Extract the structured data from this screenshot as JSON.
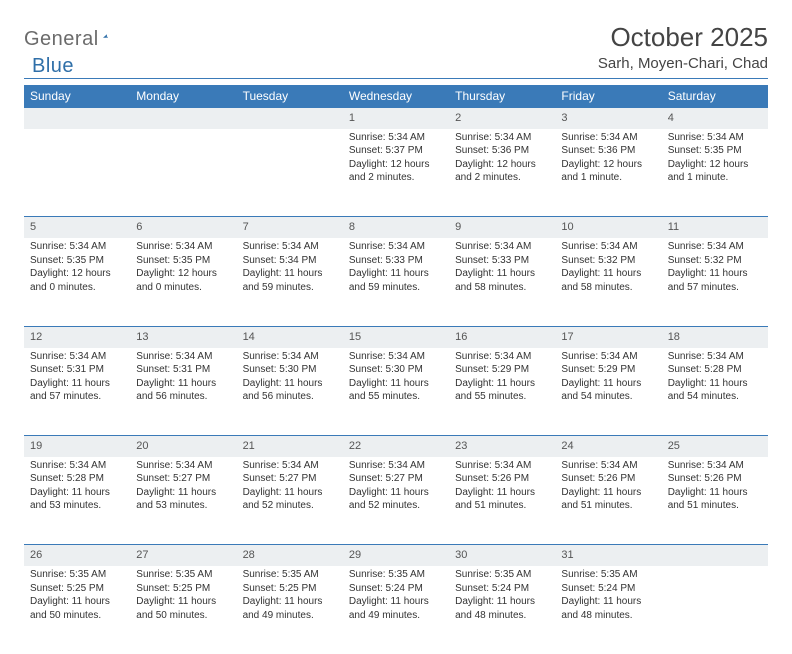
{
  "brand": {
    "part1": "General",
    "part2": "Blue"
  },
  "title": "October 2025",
  "location": "Sarh, Moyen-Chari, Chad",
  "header_bg": "#3a7ab8",
  "header_fg": "#ffffff",
  "daynum_bg": "#eceff1",
  "page_bg": "#ffffff",
  "text_color": "#333333",
  "day_headers": [
    "Sunday",
    "Monday",
    "Tuesday",
    "Wednesday",
    "Thursday",
    "Friday",
    "Saturday"
  ],
  "weeks": [
    [
      null,
      null,
      null,
      {
        "n": "1",
        "sr": "5:34 AM",
        "ss": "5:37 PM",
        "dl1": "12 hours",
        "dl2": "and 2 minutes."
      },
      {
        "n": "2",
        "sr": "5:34 AM",
        "ss": "5:36 PM",
        "dl1": "12 hours",
        "dl2": "and 2 minutes."
      },
      {
        "n": "3",
        "sr": "5:34 AM",
        "ss": "5:36 PM",
        "dl1": "12 hours",
        "dl2": "and 1 minute."
      },
      {
        "n": "4",
        "sr": "5:34 AM",
        "ss": "5:35 PM",
        "dl1": "12 hours",
        "dl2": "and 1 minute."
      }
    ],
    [
      {
        "n": "5",
        "sr": "5:34 AM",
        "ss": "5:35 PM",
        "dl1": "12 hours",
        "dl2": "and 0 minutes."
      },
      {
        "n": "6",
        "sr": "5:34 AM",
        "ss": "5:35 PM",
        "dl1": "12 hours",
        "dl2": "and 0 minutes."
      },
      {
        "n": "7",
        "sr": "5:34 AM",
        "ss": "5:34 PM",
        "dl1": "11 hours",
        "dl2": "and 59 minutes."
      },
      {
        "n": "8",
        "sr": "5:34 AM",
        "ss": "5:33 PM",
        "dl1": "11 hours",
        "dl2": "and 59 minutes."
      },
      {
        "n": "9",
        "sr": "5:34 AM",
        "ss": "5:33 PM",
        "dl1": "11 hours",
        "dl2": "and 58 minutes."
      },
      {
        "n": "10",
        "sr": "5:34 AM",
        "ss": "5:32 PM",
        "dl1": "11 hours",
        "dl2": "and 58 minutes."
      },
      {
        "n": "11",
        "sr": "5:34 AM",
        "ss": "5:32 PM",
        "dl1": "11 hours",
        "dl2": "and 57 minutes."
      }
    ],
    [
      {
        "n": "12",
        "sr": "5:34 AM",
        "ss": "5:31 PM",
        "dl1": "11 hours",
        "dl2": "and 57 minutes."
      },
      {
        "n": "13",
        "sr": "5:34 AM",
        "ss": "5:31 PM",
        "dl1": "11 hours",
        "dl2": "and 56 minutes."
      },
      {
        "n": "14",
        "sr": "5:34 AM",
        "ss": "5:30 PM",
        "dl1": "11 hours",
        "dl2": "and 56 minutes."
      },
      {
        "n": "15",
        "sr": "5:34 AM",
        "ss": "5:30 PM",
        "dl1": "11 hours",
        "dl2": "and 55 minutes."
      },
      {
        "n": "16",
        "sr": "5:34 AM",
        "ss": "5:29 PM",
        "dl1": "11 hours",
        "dl2": "and 55 minutes."
      },
      {
        "n": "17",
        "sr": "5:34 AM",
        "ss": "5:29 PM",
        "dl1": "11 hours",
        "dl2": "and 54 minutes."
      },
      {
        "n": "18",
        "sr": "5:34 AM",
        "ss": "5:28 PM",
        "dl1": "11 hours",
        "dl2": "and 54 minutes."
      }
    ],
    [
      {
        "n": "19",
        "sr": "5:34 AM",
        "ss": "5:28 PM",
        "dl1": "11 hours",
        "dl2": "and 53 minutes."
      },
      {
        "n": "20",
        "sr": "5:34 AM",
        "ss": "5:27 PM",
        "dl1": "11 hours",
        "dl2": "and 53 minutes."
      },
      {
        "n": "21",
        "sr": "5:34 AM",
        "ss": "5:27 PM",
        "dl1": "11 hours",
        "dl2": "and 52 minutes."
      },
      {
        "n": "22",
        "sr": "5:34 AM",
        "ss": "5:27 PM",
        "dl1": "11 hours",
        "dl2": "and 52 minutes."
      },
      {
        "n": "23",
        "sr": "5:34 AM",
        "ss": "5:26 PM",
        "dl1": "11 hours",
        "dl2": "and 51 minutes."
      },
      {
        "n": "24",
        "sr": "5:34 AM",
        "ss": "5:26 PM",
        "dl1": "11 hours",
        "dl2": "and 51 minutes."
      },
      {
        "n": "25",
        "sr": "5:34 AM",
        "ss": "5:26 PM",
        "dl1": "11 hours",
        "dl2": "and 51 minutes."
      }
    ],
    [
      {
        "n": "26",
        "sr": "5:35 AM",
        "ss": "5:25 PM",
        "dl1": "11 hours",
        "dl2": "and 50 minutes."
      },
      {
        "n": "27",
        "sr": "5:35 AM",
        "ss": "5:25 PM",
        "dl1": "11 hours",
        "dl2": "and 50 minutes."
      },
      {
        "n": "28",
        "sr": "5:35 AM",
        "ss": "5:25 PM",
        "dl1": "11 hours",
        "dl2": "and 49 minutes."
      },
      {
        "n": "29",
        "sr": "5:35 AM",
        "ss": "5:24 PM",
        "dl1": "11 hours",
        "dl2": "and 49 minutes."
      },
      {
        "n": "30",
        "sr": "5:35 AM",
        "ss": "5:24 PM",
        "dl1": "11 hours",
        "dl2": "and 48 minutes."
      },
      {
        "n": "31",
        "sr": "5:35 AM",
        "ss": "5:24 PM",
        "dl1": "11 hours",
        "dl2": "and 48 minutes."
      },
      null
    ]
  ],
  "labels": {
    "sunrise": "Sunrise: ",
    "sunset": "Sunset: ",
    "daylight": "Daylight: "
  }
}
